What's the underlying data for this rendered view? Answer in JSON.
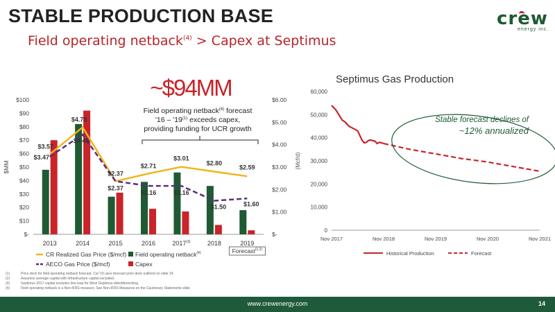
{
  "slide": {
    "title": "STABLE PRODUCTION BASE",
    "subtitle_main": "Field operating netback",
    "subtitle_sup": "(4)",
    "subtitle_tail": " > Capex at Septimus",
    "logo_text": "crew",
    "logo_sub": "energy inc.",
    "footer_url": "www.crewenergy.com",
    "page_number": "14"
  },
  "footnotes": [
    {
      "num": "(1)",
      "text": "Price deck for field operating netback forecast. Cal '19 uses forecast price deck outlined on slide 24."
    },
    {
      "num": "(2)",
      "text": "Assumes average capital with infrastructure capital excluded."
    },
    {
      "num": "(3)",
      "text": "Septimus 2017 capital excludes line loop for West Septimus debottlenecking."
    },
    {
      "num": "(4)",
      "text": "Field operating netback is a Non-IFRS measure; See Non-IFRS Measures on the Cautionary Statements slide."
    }
  ],
  "annotations": {
    "big_value": "~$94MM",
    "callout_line1_a": "Field operating netback",
    "callout_line1_sup": "(4)",
    "callout_line1_b": " forecast",
    "callout_line2_a": "'16 – '19",
    "callout_line2_sup": "(1)",
    "callout_line2_b": " exceeds capex,",
    "callout_line3": "providing funding for UCR growth",
    "decline_line1": "Stable forecast declines of",
    "decline_line2": "~12% annualized"
  },
  "colors": {
    "netback": "#1e5a32",
    "capex": "#c8242a",
    "cr_price": "#f2b51c",
    "aeco_price": "#5a2d82",
    "production": "#c8242a",
    "ellipse": "#1e5a32"
  },
  "chart_data": [
    {
      "type": "bar",
      "title": "",
      "categories": [
        "2013",
        "2014",
        "2015",
        "2016",
        "2017",
        "2018",
        "2019"
      ],
      "category_sups": [
        "",
        "",
        "",
        "",
        "(3)",
        "",
        ""
      ],
      "last_category_label": "Forecast",
      "last_category_sup": "(1,2)",
      "ylabel": "$MM",
      "ylim": [
        0,
        100
      ],
      "yticks": [
        "$-",
        "$10",
        "$20",
        "$30",
        "$40",
        "$50",
        "$60",
        "$70",
        "$80",
        "$90",
        "$100"
      ],
      "y2lim": [
        0,
        6
      ],
      "y2ticks": [
        "$-",
        "$1.00",
        "$2.00",
        "$3.00",
        "$4.00",
        "$5.00",
        "$6.00"
      ],
      "series": [
        {
          "name": "Field operating netback",
          "name_sup": "(4)",
          "kind": "bar",
          "values": [
            48,
            82,
            28,
            39,
            46,
            36,
            18
          ]
        },
        {
          "name": "Capex",
          "kind": "bar",
          "values": [
            70,
            92,
            31,
            19,
            17,
            7,
            3
          ]
        },
        {
          "name": "CR Realized Gas Price ($/mcf)",
          "kind": "line",
          "axis": "secondary",
          "values": [
            3.57,
            4.78,
            2.37,
            2.71,
            3.01,
            2.8,
            2.59
          ],
          "labels": [
            "$3.57",
            "$4.78",
            "$2.37",
            "$2.71",
            "$3.01",
            "$2.80",
            "$2.59"
          ]
        },
        {
          "name": "AECO Gas Price ($/mcf)",
          "kind": "dashed-line",
          "axis": "secondary",
          "values": [
            3.47,
            4.45,
            2.37,
            2.16,
            2.16,
            1.5,
            1.6
          ],
          "labels": [
            "$3.47",
            "$4.45",
            "$2.37",
            "$2.16",
            "$2.16",
            "$1.50",
            "$1.60"
          ]
        }
      ],
      "legend": "bottom"
    },
    {
      "type": "line",
      "title": "Septimus Gas Production",
      "ylabel": "(Mcf/d)",
      "ylim": [
        0,
        60000
      ],
      "yticks": [
        "0",
        "10,000",
        "20,000",
        "30,000",
        "40,000",
        "50,000",
        "60,000"
      ],
      "xticks": [
        "Nov 2017",
        "Nov 2018",
        "Nov 2019",
        "Nov 2020",
        "Nov 2021"
      ],
      "xlim": [
        0,
        48
      ],
      "series": [
        {
          "name": "Historical Production",
          "style": "solid",
          "x": [
            0,
            0.5,
            1,
            2,
            2.5,
            3,
            4,
            4.5,
            5,
            6,
            7,
            7.5,
            8,
            8.5,
            9,
            10,
            10.5,
            11,
            11.5,
            12
          ],
          "y": [
            54000,
            53000,
            52000,
            49000,
            47500,
            47000,
            45000,
            44500,
            44000,
            43000,
            39000,
            37800,
            38000,
            38800,
            39000,
            38500,
            37500,
            38000,
            37800,
            37500
          ]
        },
        {
          "name": "Forecast",
          "style": "dashed",
          "x": [
            12,
            18,
            24,
            30,
            36,
            42,
            48
          ],
          "y": [
            37500,
            35000,
            33000,
            31000,
            29500,
            27500,
            25500
          ]
        }
      ],
      "legend": "bottom"
    }
  ]
}
